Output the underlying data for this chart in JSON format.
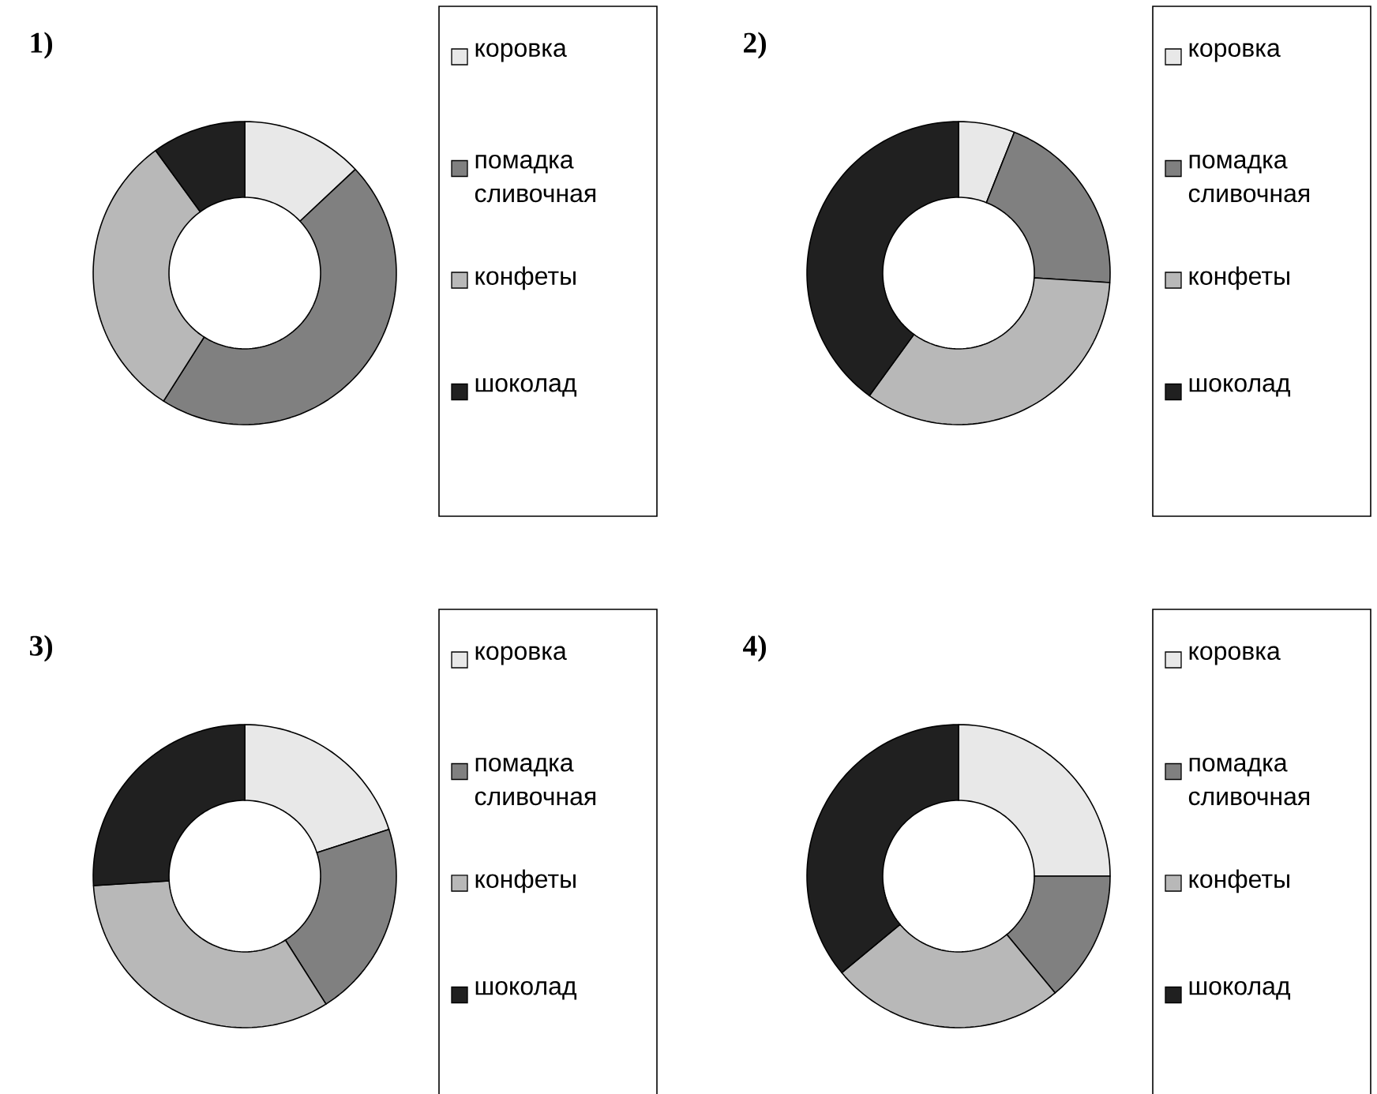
{
  "chart_data": [
    {
      "type": "donut",
      "title": "1)",
      "categories": [
        "коровка",
        "помадка сливочная",
        "конфеты",
        "шоколад"
      ],
      "values": [
        13,
        46,
        31,
        10
      ],
      "colors": [
        "#e8e8e8",
        "#808080",
        "#b8b8b8",
        "#202020"
      ],
      "legend": "right"
    },
    {
      "type": "donut",
      "title": "2)",
      "categories": [
        "коровка",
        "помадка сливочная",
        "конфеты",
        "шоколад"
      ],
      "values": [
        6,
        20,
        34,
        40
      ],
      "colors": [
        "#e8e8e8",
        "#808080",
        "#b8b8b8",
        "#202020"
      ],
      "legend": "right"
    },
    {
      "type": "donut",
      "title": "3)",
      "categories": [
        "коровка",
        "помадка сливочная",
        "конфеты",
        "шоколад"
      ],
      "values": [
        20,
        21,
        33,
        26
      ],
      "colors": [
        "#e8e8e8",
        "#808080",
        "#b8b8b8",
        "#202020"
      ],
      "legend": "right"
    },
    {
      "type": "donut",
      "title": "4)",
      "categories": [
        "коровка",
        "помадка сливочная",
        "конфеты",
        "шоколад"
      ],
      "values": [
        25,
        14,
        25,
        36
      ],
      "colors": [
        "#e8e8e8",
        "#808080",
        "#b8b8b8",
        "#202020"
      ],
      "legend": "right"
    }
  ]
}
